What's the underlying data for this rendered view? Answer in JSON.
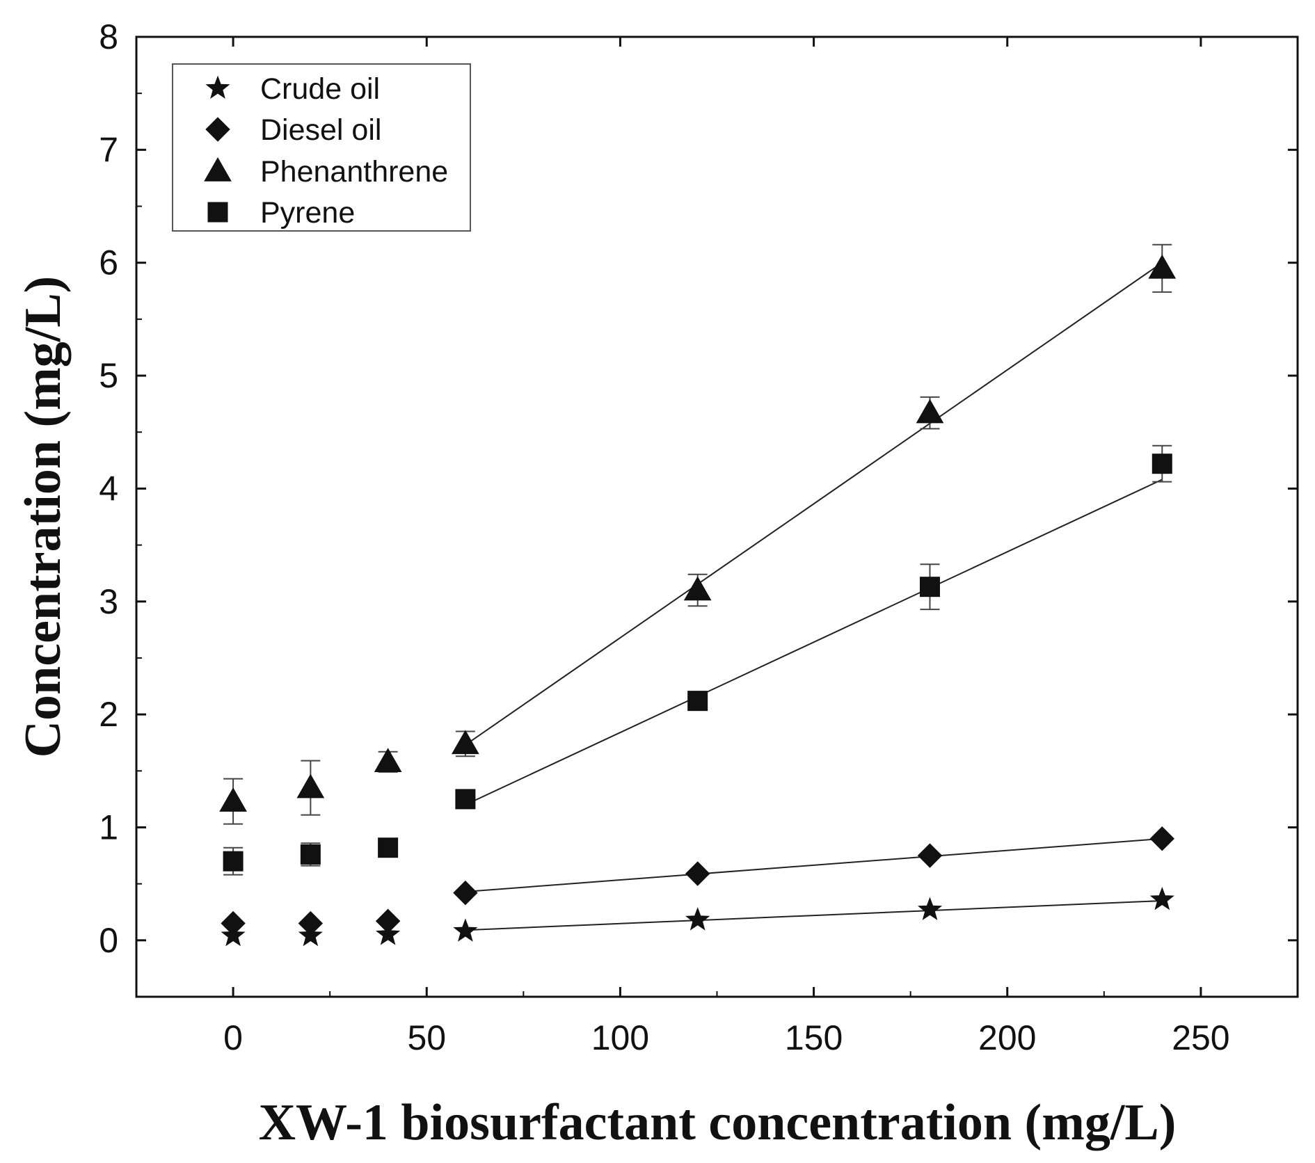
{
  "chart_data": {
    "type": "scatter",
    "title": "",
    "xlabel": "XW-1 biosurfactant concentration (mg/L)",
    "ylabel": "Concentration (mg/L)",
    "xlim": [
      -25,
      275
    ],
    "ylim": [
      -0.5,
      8
    ],
    "xticks": [
      0,
      50,
      100,
      150,
      200,
      250
    ],
    "yticks": [
      0,
      1,
      2,
      3,
      4,
      5,
      6,
      7,
      8
    ],
    "legend_position": "top-left",
    "series": [
      {
        "name": "Crude oil",
        "marker": "star",
        "x": [
          0,
          20,
          40,
          60,
          120,
          180,
          240
        ],
        "y": [
          0.04,
          0.04,
          0.05,
          0.08,
          0.18,
          0.27,
          0.36
        ],
        "err": [
          0,
          0,
          0,
          0,
          0,
          0,
          0
        ],
        "fit": {
          "x": [
            60,
            240
          ],
          "y": [
            0.09,
            0.35
          ]
        }
      },
      {
        "name": "Diesel oil",
        "marker": "diamond",
        "x": [
          0,
          20,
          40,
          60,
          120,
          180,
          240
        ],
        "y": [
          0.15,
          0.15,
          0.17,
          0.42,
          0.59,
          0.75,
          0.9
        ],
        "err": [
          0,
          0,
          0,
          0,
          0,
          0,
          0
        ],
        "fit": {
          "x": [
            60,
            240
          ],
          "y": [
            0.43,
            0.9
          ]
        }
      },
      {
        "name": "Phenanthrene",
        "marker": "triangle",
        "x": [
          0,
          20,
          40,
          60,
          120,
          180,
          240
        ],
        "y": [
          1.23,
          1.35,
          1.58,
          1.74,
          3.1,
          4.67,
          5.95
        ],
        "err": [
          0.2,
          0.24,
          0.09,
          0.11,
          0.14,
          0.14,
          0.21
        ],
        "fit": {
          "x": [
            60,
            240
          ],
          "y": [
            1.73,
            6.0
          ]
        }
      },
      {
        "name": "Pyrene",
        "marker": "square",
        "x": [
          0,
          20,
          40,
          60,
          120,
          180,
          240
        ],
        "y": [
          0.7,
          0.76,
          0.82,
          1.25,
          2.12,
          3.13,
          4.22
        ],
        "err": [
          0.12,
          0.1,
          0.05,
          0.05,
          0.06,
          0.2,
          0.16
        ],
        "fit": {
          "x": [
            60,
            240
          ],
          "y": [
            1.2,
            4.08
          ]
        }
      }
    ]
  }
}
